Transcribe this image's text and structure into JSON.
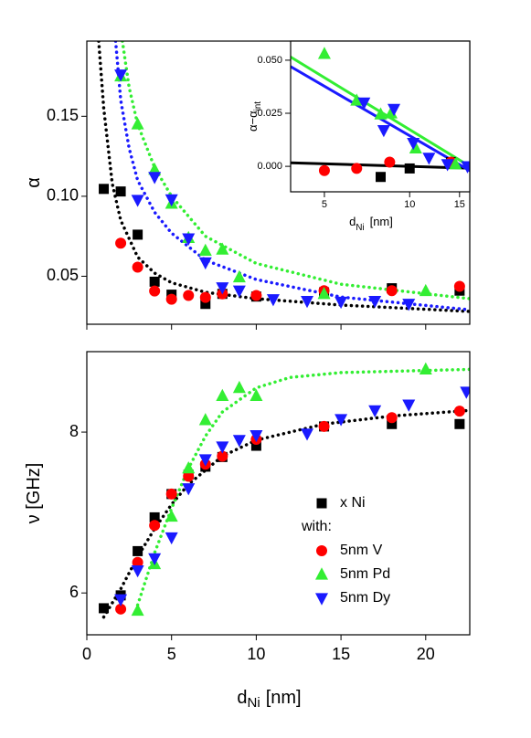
{
  "chart_data": [
    {
      "type": "scatter",
      "y_label": "α",
      "xlim": [
        0,
        22.6
      ],
      "ylim": [
        0.02,
        0.197
      ],
      "yticks": [
        0.05,
        {
          "value": 0.1,
          "label": "0.10"
        },
        0.15
      ],
      "series": [
        {
          "color": "#000000",
          "marker": "square",
          "x": [
            1,
            2,
            3,
            4,
            5,
            7,
            8,
            10,
            14,
            18,
            22
          ],
          "values": [
            0.1046,
            0.103,
            0.076,
            0.0466,
            0.0385,
            0.0327,
            0.039,
            0.0373,
            0.04,
            0.0425,
            0.041
          ]
        },
        {
          "color": "#ff0000",
          "marker": "circle",
          "x": [
            2,
            3,
            4,
            5,
            6,
            7,
            8,
            10,
            14,
            18,
            22
          ],
          "values": [
            0.0707,
            0.0557,
            0.0408,
            0.0356,
            0.038,
            0.0368,
            0.039,
            0.038,
            0.041,
            0.041,
            0.0437
          ]
        },
        {
          "color": "#33ee33",
          "marker": "triangle-up",
          "x": [
            2,
            3,
            4,
            5,
            6,
            7,
            8,
            9,
            14,
            20
          ],
          "values": [
            0.175,
            0.145,
            0.1167,
            0.0954,
            0.074,
            0.066,
            0.0667,
            0.0494,
            0.039,
            0.0408
          ]
        },
        {
          "color": "#1a1aff",
          "marker": "triangle-down",
          "x": [
            2,
            3,
            4,
            5,
            6,
            7,
            8,
            9,
            11,
            13,
            15,
            17,
            19
          ],
          "values": [
            0.176,
            0.0977,
            0.112,
            0.098,
            0.0736,
            0.0586,
            0.043,
            0.041,
            0.0356,
            0.0345,
            0.034,
            0.0345,
            0.0327
          ]
        }
      ],
      "fits": [
        {
          "color": "#000000",
          "style": "dotted",
          "x": [
            0.7,
            1,
            1.5,
            2,
            3,
            4,
            5,
            7,
            10,
            15,
            22.6
          ],
          "values": [
            0.197,
            0.155,
            0.108,
            0.085,
            0.062,
            0.052,
            0.046,
            0.04,
            0.036,
            0.032,
            0.028
          ]
        },
        {
          "color": "#1a1aff",
          "style": "dotted",
          "x": [
            1.7,
            2,
            2.5,
            3,
            4,
            5,
            7,
            10,
            15,
            22.6
          ],
          "values": [
            0.197,
            0.16,
            0.13,
            0.11,
            0.09,
            0.077,
            0.06,
            0.048,
            0.037,
            0.029
          ]
        },
        {
          "color": "#33ee33",
          "style": "dotted",
          "x": [
            2.1,
            2.5,
            3,
            4,
            5,
            7,
            10,
            15,
            22.6
          ],
          "values": [
            0.197,
            0.168,
            0.145,
            0.118,
            0.1,
            0.075,
            0.058,
            0.045,
            0.036
          ]
        }
      ]
    },
    {
      "type": "scatter",
      "y_label": "ν [GHz]",
      "x_label": "d",
      "x_label_sub": "Ni",
      "x_label_unit": "[nm]",
      "xlim": [
        0,
        22.6
      ],
      "ylim": [
        5.48,
        9.0
      ],
      "xticks": [
        0,
        5,
        10,
        15,
        20
      ],
      "yticks": [
        6,
        8
      ],
      "legend_header": "with:",
      "series": [
        {
          "name": "x Ni",
          "color": "#000000",
          "marker": "square",
          "x": [
            1,
            2,
            3,
            4,
            5,
            6,
            7,
            8,
            10,
            14,
            18,
            22
          ],
          "values": [
            5.81,
            5.97,
            6.52,
            6.94,
            7.23,
            7.47,
            7.57,
            7.69,
            7.83,
            8.07,
            8.1,
            8.1
          ]
        },
        {
          "name": "5nm V",
          "color": "#ff0000",
          "marker": "circle",
          "x": [
            2,
            3,
            4,
            5,
            6,
            7,
            8,
            10,
            14,
            18,
            22
          ],
          "values": [
            5.8,
            6.38,
            6.84,
            7.23,
            7.45,
            7.6,
            7.7,
            7.91,
            8.07,
            8.18,
            8.26
          ]
        },
        {
          "name": "5nm Pd",
          "color": "#33ee33",
          "marker": "triangle-up",
          "x": [
            3,
            4,
            5,
            6,
            7,
            8,
            9,
            10,
            20
          ],
          "values": [
            5.78,
            6.36,
            6.95,
            7.55,
            8.15,
            8.45,
            8.55,
            8.45,
            8.78
          ]
        },
        {
          "name": "5nm Dy",
          "color": "#1a1aff",
          "marker": "triangle-down",
          "x": [
            2,
            3,
            4,
            5,
            6,
            7,
            8,
            9,
            10,
            13,
            15,
            17,
            19,
            22.4
          ],
          "values": [
            5.92,
            6.28,
            6.43,
            6.69,
            7.3,
            7.66,
            7.82,
            7.9,
            7.96,
            7.98,
            8.16,
            8.27,
            8.34,
            8.5
          ]
        }
      ],
      "fits": [
        {
          "color": "#000000",
          "style": "dotted",
          "x": [
            1,
            2,
            3,
            4,
            5,
            6,
            8,
            10,
            14,
            18,
            22.6
          ],
          "values": [
            5.7,
            6.05,
            6.45,
            6.8,
            7.1,
            7.35,
            7.7,
            7.9,
            8.1,
            8.2,
            8.27
          ]
        },
        {
          "color": "#33ee33",
          "style": "dotted",
          "x": [
            3,
            4,
            5,
            6,
            7,
            8,
            10,
            12,
            15,
            22.6
          ],
          "values": [
            5.85,
            6.5,
            7.05,
            7.55,
            7.95,
            8.25,
            8.55,
            8.68,
            8.74,
            8.78
          ]
        }
      ]
    },
    {
      "type": "scatter",
      "y_label": "α−α",
      "y_label_sub": "int",
      "x_label": "d",
      "x_label_sub": "Ni",
      "x_label_unit": "[nm]",
      "xlog": true,
      "xlim": [
        3.8,
        16.3
      ],
      "ylim": [
        -0.012,
        0.059
      ],
      "xticks": [
        5,
        10,
        15
      ],
      "yticks": [
        {
          "value": 0,
          "label": "0.000"
        },
        {
          "value": 0.025,
          "label": "0.025"
        },
        {
          "value": 0.05,
          "label": "0.050"
        }
      ],
      "series": [
        {
          "color": "#000000",
          "marker": "square",
          "x": [
            7.9,
            10,
            14
          ],
          "values": [
            -0.005,
            -0.001,
            0.002
          ]
        },
        {
          "color": "#ff0000",
          "marker": "circle",
          "x": [
            5,
            6.5,
            8.5,
            14
          ],
          "values": [
            -0.002,
            -0.001,
            0.002,
            0.002
          ]
        },
        {
          "color": "#33ee33",
          "marker": "triangle-up",
          "x": [
            5,
            6.5,
            7.9,
            8.6,
            10.5,
            14.5
          ],
          "values": [
            0.053,
            0.031,
            0.0245,
            0.025,
            0.0085,
            0.001
          ]
        },
        {
          "color": "#1a1aff",
          "marker": "triangle-down",
          "x": [
            6.9,
            8.1,
            8.8,
            10.3,
            11.7,
            13.6,
            16
          ],
          "values": [
            0.03,
            0.017,
            0.027,
            0.011,
            0.004,
            0.001,
            0
          ]
        }
      ],
      "fits": [
        {
          "color": "#000000",
          "style": "solid",
          "x": [
            3.8,
            16.3
          ],
          "values": [
            0.0017,
            -0.0009
          ]
        },
        {
          "color": "#1a1aff",
          "style": "solid",
          "x": [
            3.8,
            16.3
          ],
          "values": [
            0.047,
            -0.002
          ]
        },
        {
          "color": "#33ee33",
          "style": "solid",
          "x": [
            3.8,
            16.3
          ],
          "values": [
            0.0515,
            0
          ]
        }
      ]
    }
  ]
}
